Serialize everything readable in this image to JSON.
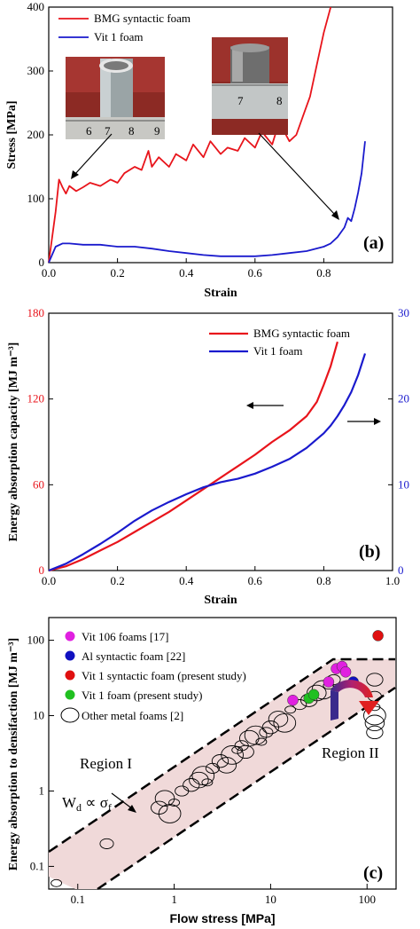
{
  "chart_data": [
    {
      "panel": "(a)",
      "type": "line",
      "xlabel": "Strain",
      "ylabel": "Stress [MPa]",
      "xlim": [
        0,
        1.0
      ],
      "ylim": [
        0,
        400
      ],
      "xticks": [
        "0.0",
        "0.2",
        "0.4",
        "0.6",
        "0.8"
      ],
      "yticks": [
        "0",
        "100",
        "200",
        "300",
        "400"
      ],
      "legend_position": "top-left",
      "series": [
        {
          "name": "BMG syntactic foam",
          "color": "#e8141b",
          "x": [
            0.0,
            0.02,
            0.03,
            0.04,
            0.05,
            0.06,
            0.08,
            0.1,
            0.12,
            0.15,
            0.18,
            0.2,
            0.22,
            0.25,
            0.27,
            0.29,
            0.3,
            0.32,
            0.35,
            0.37,
            0.4,
            0.42,
            0.45,
            0.47,
            0.5,
            0.52,
            0.55,
            0.57,
            0.6,
            0.62,
            0.65,
            0.67,
            0.7,
            0.72,
            0.74,
            0.76,
            0.78,
            0.8,
            0.82
          ],
          "y": [
            0,
            80,
            130,
            118,
            108,
            120,
            112,
            118,
            125,
            120,
            130,
            125,
            140,
            150,
            145,
            175,
            150,
            165,
            150,
            170,
            160,
            185,
            165,
            190,
            170,
            180,
            175,
            195,
            180,
            205,
            185,
            220,
            190,
            200,
            230,
            260,
            310,
            360,
            400
          ]
        },
        {
          "name": "Vit 1 foam",
          "color": "#1a1acd",
          "x": [
            0.0,
            0.02,
            0.04,
            0.06,
            0.1,
            0.15,
            0.2,
            0.25,
            0.3,
            0.35,
            0.4,
            0.45,
            0.5,
            0.55,
            0.6,
            0.65,
            0.7,
            0.75,
            0.8,
            0.82,
            0.84,
            0.86,
            0.87,
            0.88,
            0.89,
            0.9,
            0.91,
            0.92
          ],
          "y": [
            0,
            25,
            30,
            30,
            28,
            28,
            25,
            25,
            22,
            18,
            15,
            12,
            10,
            10,
            10,
            12,
            15,
            18,
            25,
            30,
            40,
            55,
            70,
            65,
            85,
            110,
            140,
            190
          ]
        }
      ]
    },
    {
      "panel": "(b)",
      "type": "line",
      "xlabel": "Strain",
      "ylabel": "Energy absorption capacity [MJ m⁻³]",
      "xlim": [
        0,
        1.0
      ],
      "ylim_left": [
        0,
        180
      ],
      "ylim_right": [
        0,
        30
      ],
      "xticks": [
        "0.0",
        "0.2",
        "0.4",
        "0.6",
        "0.8",
        "1.0"
      ],
      "yticks_left": [
        "0",
        "60",
        "120",
        "180"
      ],
      "yticks_right": [
        "0",
        "10",
        "20",
        "30"
      ],
      "legend_position": "top-center",
      "series": [
        {
          "name": "BMG syntactic foam",
          "axis": "left",
          "color": "#e8141b",
          "x": [
            0.0,
            0.05,
            0.1,
            0.15,
            0.2,
            0.25,
            0.3,
            0.35,
            0.4,
            0.45,
            0.5,
            0.55,
            0.6,
            0.65,
            0.7,
            0.75,
            0.78,
            0.8,
            0.82,
            0.84
          ],
          "y": [
            0,
            3,
            8,
            14,
            20,
            27,
            34,
            41,
            49,
            57,
            65,
            73,
            81,
            90,
            98,
            108,
            118,
            130,
            143,
            160
          ]
        },
        {
          "name": "Vit 1 foam",
          "axis": "right",
          "color": "#1a1acd",
          "x": [
            0.0,
            0.05,
            0.1,
            0.15,
            0.2,
            0.25,
            0.3,
            0.35,
            0.4,
            0.45,
            0.5,
            0.55,
            0.6,
            0.65,
            0.7,
            0.75,
            0.8,
            0.82,
            0.84,
            0.86,
            0.88,
            0.9,
            0.92
          ],
          "y": [
            0,
            0.8,
            1.9,
            3.1,
            4.4,
            5.8,
            7.0,
            8.0,
            8.9,
            9.7,
            10.3,
            10.7,
            11.3,
            12.1,
            13.0,
            14.3,
            16.0,
            16.9,
            18.0,
            19.3,
            20.8,
            22.8,
            25.3
          ]
        }
      ]
    },
    {
      "panel": "(c)",
      "type": "scatter",
      "xlabel": "Flow stress [MPa]",
      "ylabel": "Energy absorption to densifaction [MJ m⁻³]",
      "xscale": "log",
      "yscale": "log",
      "xlim": [
        0.05,
        200
      ],
      "ylim": [
        0.05,
        200
      ],
      "xticks": [
        "0.1",
        "1",
        "10",
        "100"
      ],
      "yticks": [
        "0.1",
        "1",
        "10",
        "100"
      ],
      "legend_position": "top-left",
      "series": [
        {
          "name": "Vit 106 foams [17]",
          "color": "#e020e0",
          "x": [
            17,
            40,
            48,
            55,
            60
          ],
          "y": [
            16,
            28,
            42,
            45,
            38
          ]
        },
        {
          "name": "Al syntactic foam [22]",
          "color": "#1010c0",
          "x": [
            72
          ],
          "y": [
            28
          ]
        },
        {
          "name": "Vit 1 syntactic foam (present study)",
          "color": "#e01010",
          "x": [
            130
          ],
          "y": [
            115
          ]
        },
        {
          "name": "Vit 1 foam (present study)",
          "color": "#20c020",
          "x": [
            25,
            28
          ],
          "y": [
            17,
            19
          ]
        },
        {
          "name": "Other metal foams [2]",
          "color": "#000000",
          "x": [
            0.06,
            0.2,
            0.7,
            0.8,
            0.9,
            1.0,
            1.2,
            1.5,
            1.8,
            2.0,
            2.2,
            2.5,
            3.0,
            3.5,
            4.0,
            4.5,
            5.0,
            5.5,
            6.0,
            7.0,
            8.0,
            9.0,
            10,
            12,
            14,
            16,
            20,
            25,
            30,
            35,
            40,
            45,
            120,
            120,
            120,
            120,
            120,
            120
          ],
          "y": [
            0.06,
            0.2,
            0.6,
            0.8,
            0.5,
            0.7,
            1.0,
            1.2,
            1.4,
            1.6,
            1.3,
            2.0,
            2.5,
            2.2,
            3.0,
            3.5,
            4.0,
            3.3,
            5.0,
            5.5,
            4.5,
            6.0,
            7.0,
            9.0,
            8.0,
            12.0,
            14.0,
            16.0,
            20.0,
            22.0,
            25.0,
            30.0,
            6.0,
            8.0,
            10.0,
            13.0,
            18.0,
            30.0
          ]
        }
      ],
      "annotations": [
        "Region I",
        "Region II",
        "Wd ∝ σf"
      ]
    }
  ]
}
